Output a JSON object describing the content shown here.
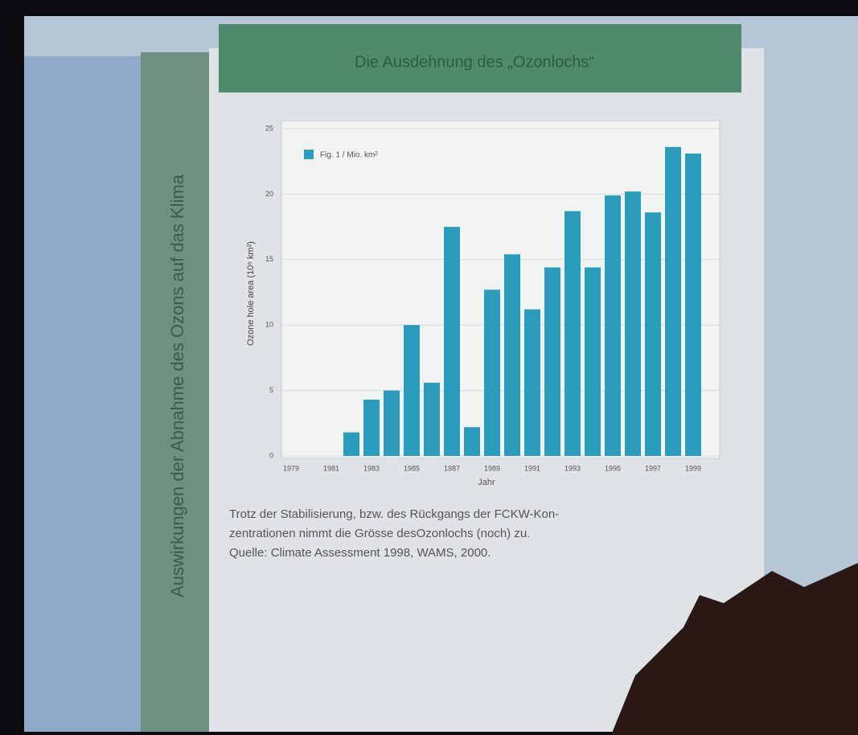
{
  "slide": {
    "title": "Die Ausdehnung des „Ozonlochs“",
    "side_title": "Auswirkungen der Abnahme des Ozons auf das Klima",
    "caption": [
      "Trotz der Stabilisierung, bzw. des Rückgangs der FCKW-Kon-",
      "zentrationen nimmt die Grösse desOzonlochs (noch) zu.",
      "Quelle: Climate Assessment 1998, WAMS, 2000."
    ]
  },
  "chart_data": {
    "type": "bar",
    "y_label": "Ozone hole area (10⁶ km²)",
    "x_label": "Jahr",
    "categories": [
      "1979",
      null,
      "1981",
      null,
      "1983",
      null,
      "1985",
      null,
      "1987",
      null,
      "1989",
      null,
      "1991",
      null,
      "1993",
      null,
      "1995",
      null,
      "1997",
      null,
      "1999"
    ],
    "series": [
      {
        "name": "Fig. 1 / Mio. km²",
        "color": "#2b9cbc",
        "values": [
          null,
          null,
          null,
          1.8,
          4.3,
          5.0,
          10.0,
          5.6,
          17.5,
          2.2,
          12.7,
          15.4,
          11.2,
          14.4,
          18.7,
          14.4,
          19.9,
          20.2,
          18.6,
          23.6,
          23.1
        ]
      }
    ],
    "ylim": [
      0,
      25
    ],
    "yticks": [
      0,
      5,
      10,
      15,
      20,
      25
    ],
    "grid": true,
    "legend": "top-left"
  }
}
